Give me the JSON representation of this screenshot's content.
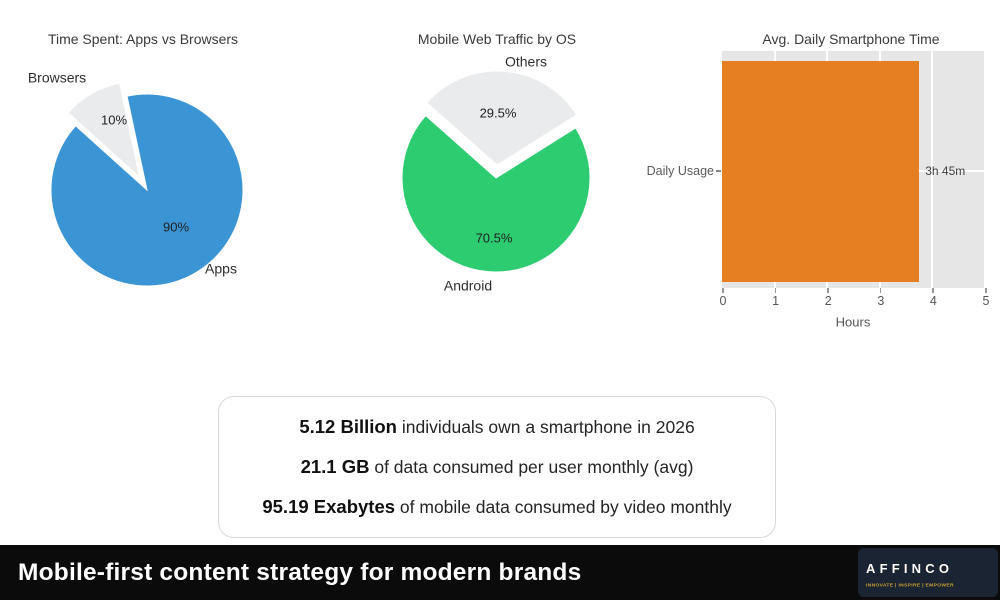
{
  "chart_data": [
    {
      "type": "pie",
      "title": "Time Spent: Apps vs Browsers",
      "slices": [
        {
          "label": "Apps",
          "value": 90,
          "pct_label": "90%",
          "color": "#3b95d5",
          "explode": 0
        },
        {
          "label": "Browsers",
          "value": 10,
          "pct_label": "10%",
          "color": "#e9ebec",
          "explode": 15
        }
      ],
      "start_angle_deg": 138,
      "legend": "none"
    },
    {
      "type": "pie",
      "title": "Mobile Web Traffic by OS",
      "slices": [
        {
          "label": "Android",
          "value": 70.5,
          "pct_label": "70.5%",
          "color": "#2ecc71",
          "explode": 0
        },
        {
          "label": "Others",
          "value": 29.5,
          "pct_label": "29.5%",
          "color": "#e9ebec",
          "explode": 13
        }
      ],
      "start_angle_deg": 138.4,
      "legend": "none"
    },
    {
      "type": "bar",
      "title": "Avg. Daily Smartphone Time",
      "orientation": "horizontal",
      "categories": [
        "Daily Usage"
      ],
      "values": [
        3.75
      ],
      "value_labels": [
        "3h 45m"
      ],
      "xlabel": "Hours",
      "xlim": [
        0,
        5
      ],
      "xticks": [
        0,
        1,
        2,
        3,
        4,
        5
      ],
      "bar_color": "#e67f21",
      "panel_color": "#e6e6e6",
      "grid_color": "#ffffff",
      "grid": "on"
    }
  ],
  "stats_box": {
    "items": [
      {
        "bold": "5.12 Billion",
        "rest": " individuals own a smartphone in 2026"
      },
      {
        "bold": "21.1 GB",
        "rest": " of data consumed per user monthly (avg)"
      },
      {
        "bold": "95.19 Exabytes",
        "rest": " of mobile data consumed by video monthly"
      }
    ]
  },
  "footer": {
    "title": "Mobile-first content strategy for modern brands",
    "bar_color": "#0b0b0b",
    "logo": {
      "name": "AFFINCO",
      "tagline": "INNOVATE | INSPIRE | EMPOWER",
      "icon": "paper-plane-icon",
      "bg_color": "#1a2433",
      "accent_color": "#e8502d",
      "tagline_color": "#c9a22d"
    }
  }
}
